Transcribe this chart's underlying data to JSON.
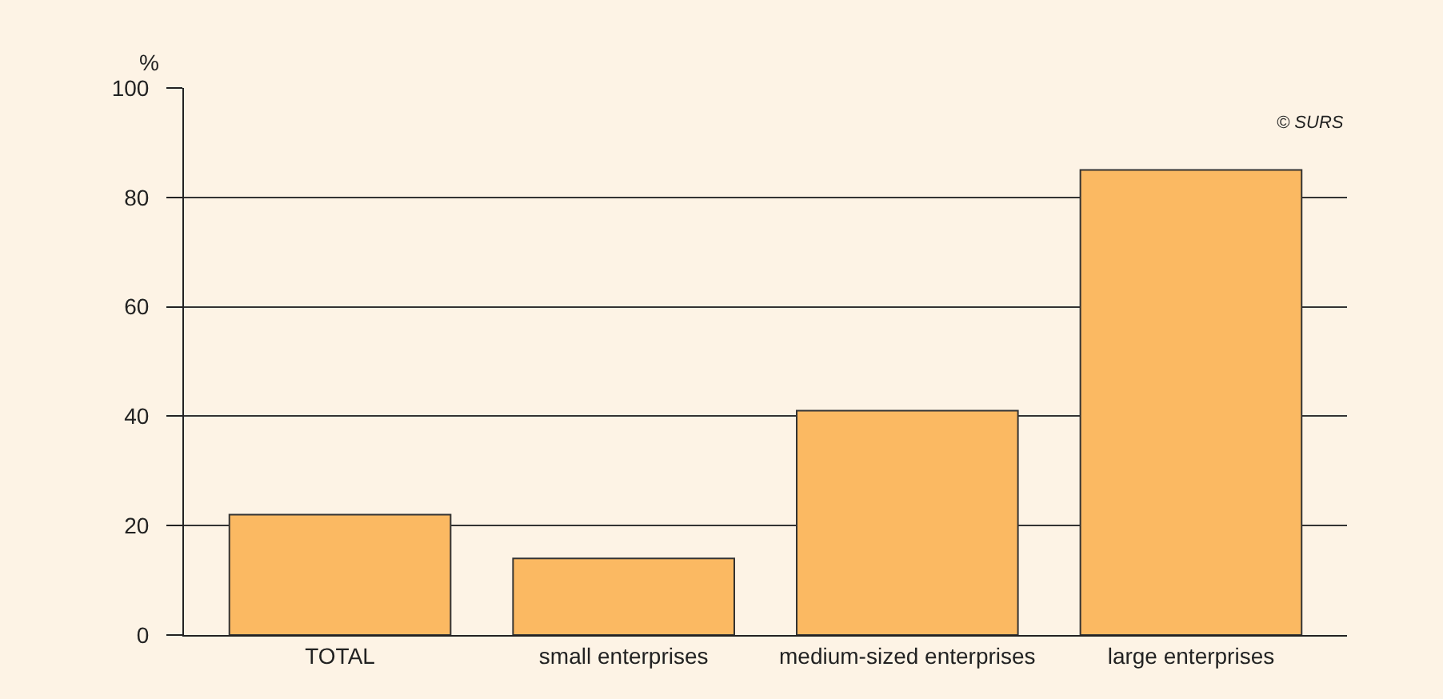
{
  "chart_data": {
    "type": "bar",
    "ylabel": "%",
    "categories": [
      "TOTAL",
      "small enterprises",
      "medium-sized enterprises",
      "large enterprises"
    ],
    "values": [
      22,
      14,
      41,
      85
    ],
    "color": "#fbb962",
    "ylim": [
      0,
      100
    ],
    "yticks": [
      0,
      20,
      40,
      60,
      80,
      100
    ],
    "grid": "y",
    "annotations": [
      "© SURS"
    ]
  }
}
